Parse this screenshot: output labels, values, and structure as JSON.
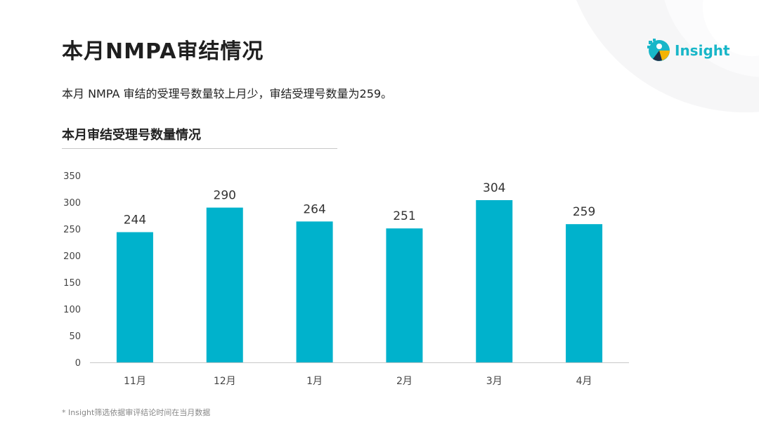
{
  "header": {
    "title": "本月NMPA审结情况",
    "subtitle": "本月 NMPA 审结的受理号数量较上月少，审结受理号数量为259。",
    "logo_text": "Insight"
  },
  "chart_section": {
    "heading": "本月审结受理号数量情况"
  },
  "footer": {
    "note": "* Insight筛选依据审评结论时间在当月数据"
  },
  "colors": {
    "bar": "#00b2cc",
    "brand": "#18b6c8",
    "axis": "#c8c8c8",
    "tick_text": "#444444",
    "label_text": "#333333"
  },
  "chart_data": {
    "type": "bar",
    "categories": [
      "11月",
      "12月",
      "1月",
      "2月",
      "3月",
      "4月"
    ],
    "values": [
      244,
      290,
      264,
      251,
      304,
      259
    ],
    "title": "本月审结受理号数量情况",
    "xlabel": "",
    "ylabel": "",
    "ylim": [
      0,
      350
    ],
    "yticks": [
      0,
      50,
      100,
      150,
      200,
      250,
      300,
      350
    ],
    "grid": false,
    "data_labels": true
  }
}
